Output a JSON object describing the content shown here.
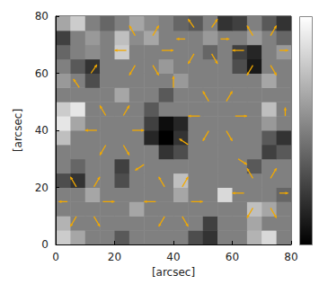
{
  "chart_data": {
    "type": "heatmap",
    "xlabel": "[arcsec]",
    "ylabel": "[arcsec]",
    "xlim": [
      0,
      80
    ],
    "ylim": [
      0,
      80
    ],
    "xticks": [
      0,
      20,
      40,
      60,
      80
    ],
    "yticks": [
      0,
      20,
      40,
      60,
      80
    ],
    "grid": false,
    "x_edges": [
      0,
      5,
      10,
      15,
      20,
      25,
      30,
      35,
      40,
      45,
      50,
      55,
      60,
      65,
      70,
      75,
      80
    ],
    "y_edges": [
      0,
      5,
      10,
      15,
      20,
      25,
      30,
      35,
      40,
      45,
      50,
      55,
      60,
      65,
      70,
      75,
      80
    ],
    "color_range": [
      -1,
      1
    ],
    "cells": [
      [
        0.6,
        0.3,
        0,
        0,
        -0.3,
        0,
        0,
        0,
        0,
        -0.4,
        -0.6,
        0,
        0,
        0.4,
        0.7,
        0
      ],
      [
        0.4,
        0,
        0,
        0,
        0,
        0,
        0,
        0,
        0,
        0,
        -0.5,
        0,
        0,
        0.3,
        0,
        0
      ],
      [
        0,
        0,
        0,
        0,
        0,
        0.3,
        0,
        0,
        0,
        0,
        0,
        0,
        0,
        0.5,
        0.3,
        0
      ],
      [
        0,
        0,
        0.3,
        0,
        0,
        0,
        0,
        0,
        0.3,
        0,
        0,
        0.7,
        0,
        0,
        0,
        -0.2
      ],
      [
        -0.4,
        -0.6,
        0,
        0,
        -0.4,
        0,
        0,
        0,
        0.5,
        0,
        0,
        0,
        0,
        0,
        0,
        0
      ],
      [
        0,
        -0.2,
        0,
        0,
        -0.5,
        0,
        0,
        0,
        0,
        0,
        0,
        0,
        0,
        -0.3,
        0,
        0
      ],
      [
        0,
        0,
        0,
        0,
        0,
        0,
        0,
        -0.6,
        -0.4,
        0,
        0,
        0,
        0,
        0,
        -0.5,
        -0.3
      ],
      [
        0.5,
        0,
        0,
        0,
        0,
        0,
        -0.7,
        -1,
        -0.6,
        0,
        0,
        0,
        0,
        0,
        -0.3,
        -0.6
      ],
      [
        0.8,
        0.3,
        0,
        0,
        0,
        0,
        -0.5,
        -0.9,
        -0.7,
        0,
        0,
        0,
        0,
        0,
        0.2,
        0
      ],
      [
        0.6,
        0.8,
        0,
        0,
        0,
        0,
        -0.3,
        0,
        0,
        0,
        0,
        0,
        0,
        0,
        0.5,
        0
      ],
      [
        0,
        0,
        0,
        0,
        0.3,
        0,
        0,
        -0.3,
        0,
        0,
        0,
        0,
        0,
        0,
        0,
        0
      ],
      [
        0.2,
        0,
        -0.4,
        0,
        0,
        0,
        0,
        0,
        0.2,
        0,
        0,
        0,
        0,
        0,
        0.3,
        0
      ],
      [
        0,
        -0.3,
        -0.6,
        0,
        0,
        0,
        0,
        0.2,
        0,
        0,
        0,
        0,
        -0.4,
        -0.8,
        0,
        0
      ],
      [
        -0.2,
        0,
        0.1,
        0,
        0.6,
        0,
        0,
        0,
        0,
        0,
        -0.2,
        0,
        -0.5,
        -0.7,
        0,
        0.2
      ],
      [
        -0.5,
        0,
        0.2,
        0,
        0.5,
        0.1,
        0.3,
        0,
        0,
        0,
        0.2,
        0,
        0,
        0.2,
        0,
        -0.2
      ],
      [
        0.3,
        0.6,
        0,
        -0.2,
        0,
        0.3,
        0.1,
        0,
        -0.2,
        -0.3,
        0,
        -0.6,
        -0.5,
        0,
        -0.3,
        -0.6
      ]
    ],
    "color": "#f2a900",
    "vectors": [
      [
        26,
        40,
        4,
        0
      ],
      [
        23,
        45.2,
        2,
        3.5
      ],
      [
        17,
        45.2,
        -2,
        3.5
      ],
      [
        14,
        40,
        -4,
        0
      ],
      [
        17,
        34.8,
        -2,
        -3.5
      ],
      [
        23,
        34.8,
        2,
        -3.5
      ],
      [
        61,
        45,
        4,
        0
      ],
      [
        58,
        50.2,
        2,
        3.5
      ],
      [
        52,
        50.2,
        -2,
        3.5
      ],
      [
        49,
        45,
        -4,
        0
      ],
      [
        52,
        39.8,
        -2,
        -3.5
      ],
      [
        58,
        39.8,
        2,
        -3.5
      ],
      [
        76,
        68,
        3,
        0
      ],
      [
        73,
        73.2,
        2,
        3.5
      ],
      [
        67,
        73.2,
        -2,
        3.5
      ],
      [
        64,
        68,
        -4,
        0
      ],
      [
        67,
        62.8,
        -2,
        -3.5
      ],
      [
        73,
        62.8,
        2,
        -3.5
      ],
      [
        36,
        68,
        4,
        0
      ],
      [
        33,
        73.2,
        2,
        3.5
      ],
      [
        27,
        73.2,
        -2,
        3.5
      ],
      [
        24,
        68,
        -4,
        0
      ],
      [
        27,
        62.8,
        -2,
        -3.5
      ],
      [
        33,
        62.8,
        2,
        -3.5
      ],
      [
        56,
        72,
        3,
        0
      ],
      [
        53,
        76,
        2,
        3
      ],
      [
        47,
        76,
        -2,
        3
      ],
      [
        44,
        72,
        -3,
        0
      ],
      [
        47,
        66.8,
        -2,
        -3.5
      ],
      [
        53,
        66.8,
        2,
        -3.5
      ],
      [
        46,
        15,
        4,
        0
      ],
      [
        43,
        20.2,
        2,
        3.5
      ],
      [
        37,
        20.2,
        -2,
        3.5
      ],
      [
        34,
        15,
        -4,
        0
      ],
      [
        37,
        9.8,
        -2,
        -3.5
      ],
      [
        43,
        9.8,
        2,
        -3.5
      ],
      [
        76,
        18,
        3,
        0
      ],
      [
        73,
        23.2,
        2,
        3.5
      ],
      [
        67,
        23.2,
        -2,
        3.5
      ],
      [
        64,
        18,
        -4,
        0
      ],
      [
        67,
        12.8,
        -2,
        -3.5
      ],
      [
        73,
        12.8,
        2,
        -3.5
      ],
      [
        16,
        15,
        4,
        0
      ],
      [
        13,
        20.2,
        2,
        3.5
      ],
      [
        7,
        20.2,
        -2,
        3.5
      ],
      [
        4,
        15,
        -3,
        0
      ],
      [
        7,
        9.8,
        -2,
        -3.5
      ],
      [
        13,
        9.8,
        2,
        -3.5
      ],
      [
        8,
        55,
        -2,
        3
      ],
      [
        12,
        60,
        2,
        3
      ],
      [
        40,
        55,
        0,
        4
      ],
      [
        62,
        30,
        3,
        -2
      ],
      [
        30,
        28,
        -3,
        -2
      ],
      [
        78,
        45,
        0,
        3
      ],
      [
        45,
        35,
        -3,
        2
      ]
    ]
  }
}
